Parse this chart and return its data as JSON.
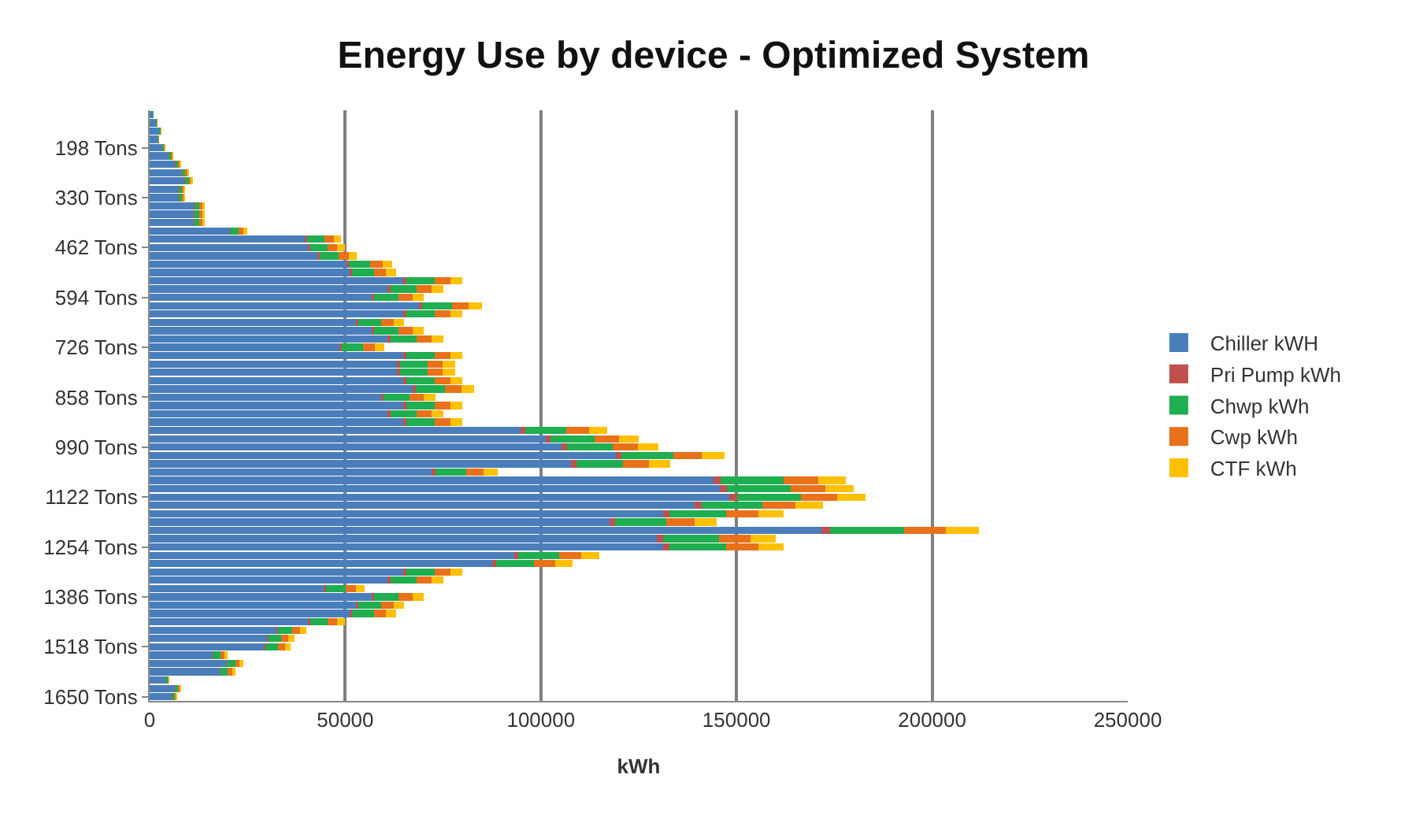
{
  "chart_data": {
    "type": "bar",
    "title": "Energy Use by device - Optimized System",
    "xlabel": "kWh",
    "orientation": "horizontal",
    "stacked": true,
    "grid": "x",
    "legend": "right",
    "categories": [
      null,
      null,
      null,
      null,
      "198 Tons",
      null,
      null,
      null,
      null,
      null,
      "330 Tons",
      null,
      null,
      null,
      null,
      null,
      "462 Tons",
      null,
      null,
      null,
      null,
      null,
      "594 Tons",
      null,
      null,
      null,
      null,
      null,
      "726 Tons",
      null,
      null,
      null,
      null,
      null,
      "858 Tons",
      null,
      null,
      null,
      null,
      null,
      "990 Tons",
      null,
      null,
      null,
      null,
      null,
      "1122 Tons",
      null,
      null,
      null,
      null,
      null,
      "1254 Tons",
      null,
      null,
      null,
      null,
      null,
      "1386 Tons",
      null,
      null,
      null,
      null,
      null,
      "1518 Tons",
      null,
      null,
      null,
      null,
      null,
      "1650 Tons"
    ],
    "xlim": [
      0,
      250000
    ],
    "xticks": [
      0,
      50000,
      100000,
      150000,
      200000,
      250000
    ],
    "series": [
      {
        "name": "Chiller kWH",
        "color": "#4a7ebb",
        "values": [
          810,
          1620,
          2430,
          2020,
          3240,
          4860,
          6480,
          8100,
          8910,
          7290,
          7290,
          11340,
          11340,
          11340,
          20250,
          39690,
          40500,
          42930,
          50220,
          51030,
          64800,
          60750,
          56700,
          68850,
          64800,
          52650,
          56700,
          60750,
          48600,
          64800,
          63180,
          63180,
          64800,
          67230,
          59130,
          64800,
          60750,
          64800,
          94770,
          101250,
          105300,
          119070,
          107730,
          72090,
          144180,
          145800,
          148230,
          139320,
          131220,
          117450,
          171720,
          129600,
          131220,
          93150,
          87480,
          64800,
          60750,
          44550,
          56700,
          52650,
          51030,
          40500,
          32400,
          29970,
          29160,
          16200,
          19440,
          17820,
          4050,
          6480,
          5670
        ]
      },
      {
        "name": "Pri Pump kWh",
        "color": "#c0504d",
        "values": [
          10,
          20,
          30,
          30,
          40,
          60,
          80,
          100,
          110,
          90,
          90,
          140,
          140,
          140,
          250,
          490,
          500,
          530,
          620,
          630,
          800,
          750,
          700,
          850,
          800,
          650,
          700,
          750,
          600,
          800,
          780,
          780,
          800,
          830,
          730,
          800,
          750,
          800,
          1170,
          1250,
          1300,
          1470,
          1330,
          890,
          1780,
          1800,
          1830,
          1720,
          1620,
          1450,
          2120,
          1600,
          1620,
          1150,
          1080,
          800,
          750,
          550,
          700,
          650,
          630,
          500,
          400,
          370,
          360,
          200,
          240,
          220,
          50,
          80,
          70
        ]
      },
      {
        "name": "Chwp kWh",
        "color": "#1fae50",
        "values": [
          90,
          180,
          270,
          220,
          360,
          540,
          720,
          900,
          990,
          810,
          810,
          1260,
          1260,
          1260,
          2250,
          4410,
          4500,
          4770,
          5580,
          5670,
          7200,
          6750,
          6300,
          7650,
          7200,
          5850,
          6300,
          6750,
          5400,
          7200,
          7020,
          7020,
          7200,
          7470,
          6570,
          7200,
          6750,
          7200,
          10530,
          11250,
          11700,
          13230,
          11970,
          8010,
          16020,
          16200,
          16470,
          15480,
          14580,
          13050,
          19080,
          14400,
          14580,
          10350,
          9720,
          7200,
          6750,
          4950,
          6300,
          5850,
          5670,
          4500,
          3600,
          3330,
          3240,
          1800,
          2160,
          1980,
          450,
          720,
          630
        ]
      },
      {
        "name": "Cwp kWh",
        "color": "#e8711a",
        "values": [
          50,
          100,
          150,
          130,
          200,
          300,
          400,
          500,
          550,
          450,
          450,
          700,
          700,
          700,
          1250,
          2450,
          2500,
          2650,
          3100,
          3150,
          4000,
          3750,
          3500,
          4250,
          4000,
          3250,
          3500,
          3750,
          3000,
          4000,
          3900,
          3900,
          4000,
          4150,
          3650,
          4000,
          3750,
          4000,
          5850,
          6250,
          6500,
          7350,
          6650,
          4450,
          8900,
          9000,
          9150,
          8600,
          8100,
          7250,
          10600,
          8000,
          8100,
          5750,
          5400,
          4000,
          3750,
          2750,
          3500,
          3250,
          3150,
          2500,
          2000,
          1850,
          1800,
          1000,
          1200,
          1100,
          250,
          400,
          350
        ]
      },
      {
        "name": "CTF kWh",
        "color": "#ffc000",
        "values": [
          40,
          80,
          120,
          100,
          160,
          240,
          320,
          400,
          440,
          360,
          360,
          560,
          560,
          560,
          1000,
          1960,
          2000,
          2120,
          2480,
          2520,
          3200,
          3000,
          2800,
          3400,
          3200,
          2600,
          2800,
          3000,
          2400,
          3200,
          3120,
          3120,
          3200,
          3320,
          2920,
          3200,
          3000,
          3200,
          4680,
          5000,
          5200,
          5880,
          5320,
          3560,
          7120,
          7200,
          7320,
          6880,
          6480,
          5800,
          8480,
          6400,
          6480,
          4600,
          4320,
          3200,
          3000,
          2200,
          2800,
          2600,
          2520,
          2000,
          1600,
          1480,
          1440,
          800,
          960,
          880,
          200,
          320,
          280
        ]
      }
    ]
  }
}
